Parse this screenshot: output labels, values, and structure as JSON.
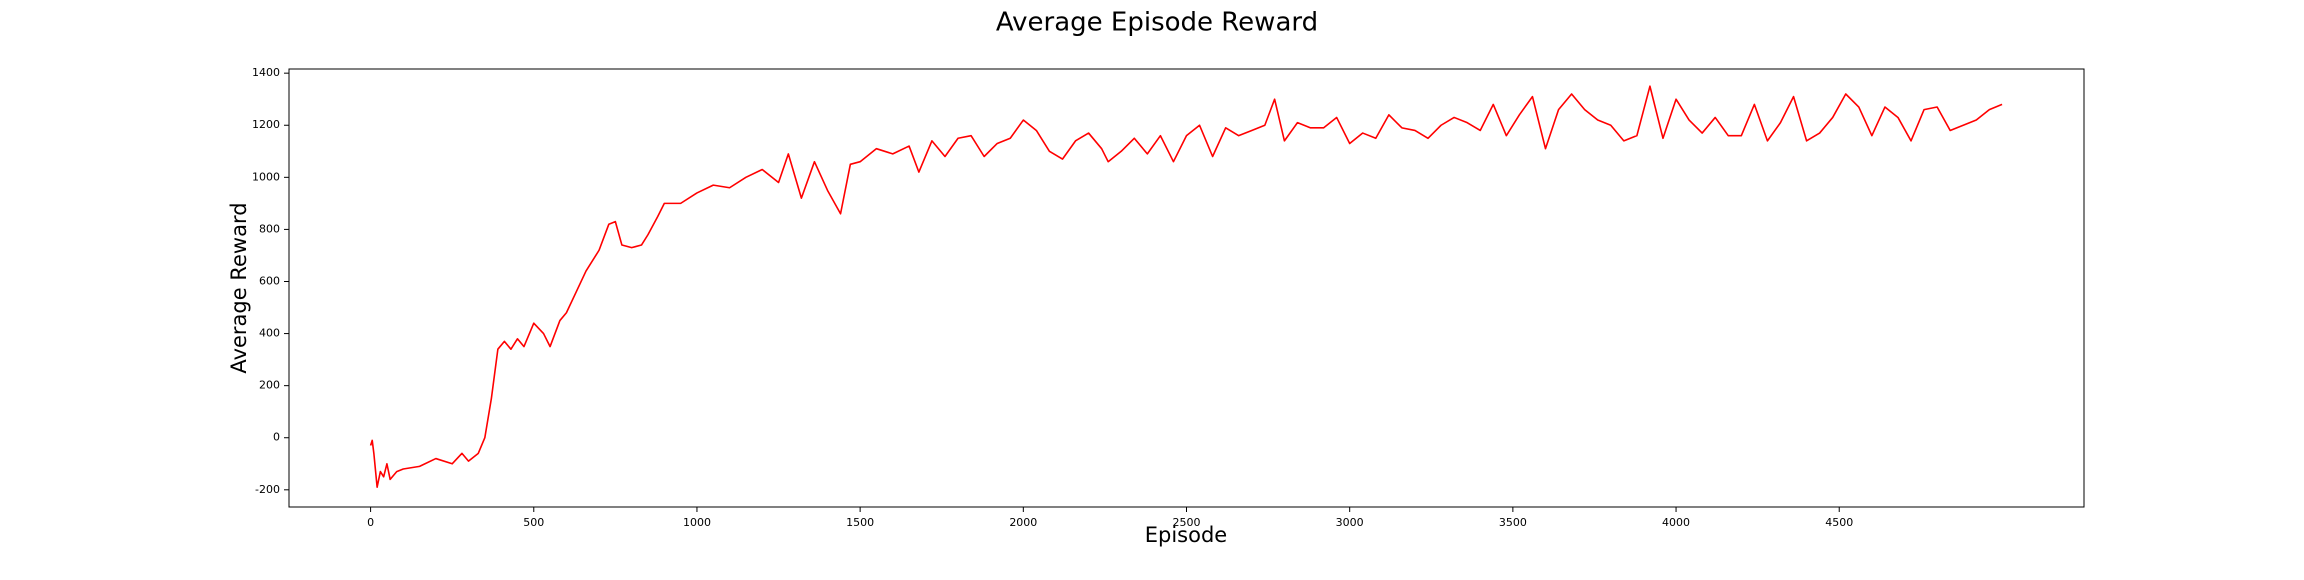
{
  "chart_data": {
    "type": "line",
    "title": "Average Episode Reward",
    "xlabel": "Episode",
    "ylabel": "Average Reward",
    "x": [
      0,
      5,
      10,
      20,
      30,
      40,
      50,
      60,
      80,
      100,
      150,
      200,
      250,
      280,
      300,
      330,
      350,
      370,
      390,
      410,
      430,
      450,
      470,
      500,
      530,
      550,
      580,
      600,
      630,
      660,
      700,
      730,
      750,
      770,
      800,
      830,
      850,
      880,
      900,
      950,
      1000,
      1050,
      1100,
      1150,
      1200,
      1250,
      1280,
      1320,
      1360,
      1400,
      1440,
      1470,
      1500,
      1550,
      1600,
      1650,
      1680,
      1720,
      1760,
      1800,
      1840,
      1880,
      1920,
      1960,
      2000,
      2040,
      2080,
      2120,
      2160,
      2200,
      2240,
      2260,
      2300,
      2340,
      2380,
      2420,
      2460,
      2500,
      2540,
      2580,
      2620,
      2660,
      2700,
      2740,
      2770,
      2800,
      2840,
      2880,
      2920,
      2960,
      3000,
      3040,
      3080,
      3120,
      3160,
      3200,
      3240,
      3280,
      3320,
      3360,
      3400,
      3440,
      3480,
      3520,
      3560,
      3600,
      3640,
      3680,
      3720,
      3760,
      3800,
      3840,
      3880,
      3920,
      3960,
      4000,
      4040,
      4080,
      4120,
      4160,
      4200,
      4240,
      4280,
      4320,
      4360,
      4400,
      4440,
      4480,
      4520,
      4560,
      4600,
      4640,
      4680,
      4720,
      4760,
      4800,
      4840,
      4880,
      4920,
      4960,
      4999
    ],
    "series": [
      {
        "name": "Average Reward",
        "color": "#ff0000",
        "values": [
          -30,
          -10,
          -60,
          -190,
          -130,
          -150,
          -100,
          -160,
          -130,
          -120,
          -110,
          -80,
          -100,
          -60,
          -90,
          -60,
          0,
          150,
          340,
          370,
          340,
          380,
          350,
          440,
          400,
          350,
          450,
          480,
          560,
          640,
          720,
          820,
          830,
          740,
          730,
          740,
          780,
          850,
          900,
          900,
          940,
          970,
          960,
          1000,
          1030,
          980,
          1090,
          920,
          1060,
          950,
          860,
          1050,
          1060,
          1110,
          1090,
          1120,
          1020,
          1140,
          1080,
          1150,
          1160,
          1080,
          1130,
          1150,
          1220,
          1180,
          1100,
          1070,
          1140,
          1170,
          1110,
          1060,
          1100,
          1150,
          1090,
          1160,
          1060,
          1160,
          1200,
          1080,
          1190,
          1160,
          1180,
          1200,
          1300,
          1140,
          1210,
          1190,
          1190,
          1230,
          1130,
          1170,
          1150,
          1240,
          1190,
          1180,
          1150,
          1200,
          1230,
          1210,
          1180,
          1280,
          1160,
          1240,
          1310,
          1110,
          1260,
          1320,
          1260,
          1220,
          1200,
          1140,
          1160,
          1350,
          1150,
          1300,
          1220,
          1170,
          1230,
          1160,
          1160,
          1280,
          1140,
          1210,
          1310,
          1140,
          1170,
          1230,
          1320,
          1270,
          1160,
          1270,
          1230,
          1140,
          1260,
          1270,
          1180,
          1200,
          1220,
          1260,
          1280
        ]
      }
    ],
    "xlim": [
      -250,
      5250
    ],
    "xticks": [
      0,
      500,
      1000,
      1500,
      2000,
      2500,
      3000,
      3500,
      4000,
      4500
    ],
    "ylim": [
      -266,
      1416
    ],
    "yticks": [
      -200,
      0,
      200,
      400,
      600,
      800,
      1000,
      1200,
      1400
    ],
    "grid": false
  }
}
